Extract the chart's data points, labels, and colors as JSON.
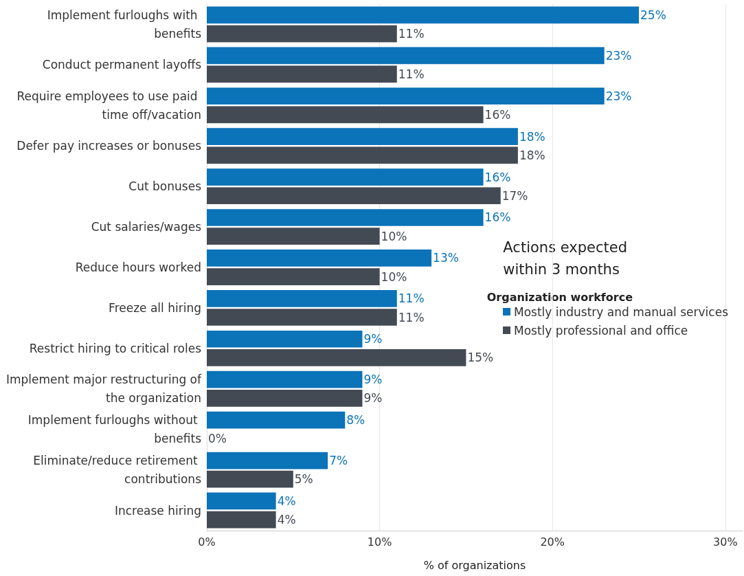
{
  "chart_data": {
    "type": "bar",
    "orientation": "horizontal",
    "xlabel": "% of organizations",
    "categories": [
      "Implement furloughs with benefits",
      "Conduct permanent layoffs",
      "Require employees to use paid time off/vacation",
      "Defer pay increases or bonuses",
      "Cut bonuses",
      "Cut salaries/wages",
      "Reduce hours worked",
      "Freeze all hiring",
      "Restrict hiring to critical roles",
      "Implement major restructuring of the organization",
      "Implement furloughs without benefits",
      "Eliminate/reduce retirement contributions",
      "Increase hiring"
    ],
    "series": [
      {
        "name": "Mostly industry and manual services",
        "color": "#0b73b8",
        "values": [
          25,
          23,
          23,
          18,
          16,
          16,
          13,
          11,
          9,
          9,
          8,
          7,
          4
        ],
        "value_labels": [
          "25%",
          "23%",
          "23%",
          "18%",
          "16%",
          "16%",
          "13%",
          "11%",
          "9%",
          "9%",
          "8%",
          "7%",
          "4%"
        ]
      },
      {
        "name": "Mostly professional and office",
        "color": "#434a54",
        "values": [
          11,
          11,
          16,
          18,
          17,
          10,
          10,
          11,
          15,
          9,
          0,
          5,
          4
        ],
        "value_labels": [
          "11%",
          "11%",
          "16%",
          "18%",
          "17%",
          "10%",
          "10%",
          "11%",
          "15%",
          "9%",
          "0%",
          "5%",
          "4%"
        ]
      }
    ],
    "xlim": [
      0,
      31
    ],
    "xticks": [
      {
        "value": 0,
        "label": "0%"
      },
      {
        "value": 10,
        "label": "10%"
      },
      {
        "value": 20,
        "label": "20%"
      },
      {
        "value": 30,
        "label": "30%"
      }
    ],
    "grid": "x",
    "legend": "right",
    "legend_title": "Organization workforce",
    "annotations": [
      "Actions expected within 3 months"
    ]
  }
}
